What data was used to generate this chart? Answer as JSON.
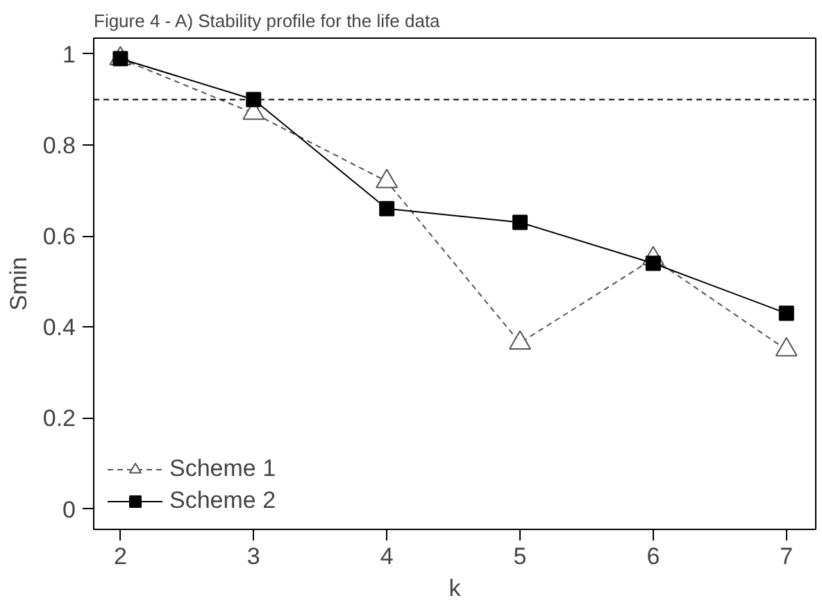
{
  "chart_data": {
    "type": "line",
    "title": "Figure 4 - A) Stability profile for the life data",
    "xlabel": "k",
    "ylabel": "Smin",
    "x": [
      2,
      3,
      4,
      5,
      6,
      7
    ],
    "series": [
      {
        "name": "Scheme 1",
        "color": "#555555",
        "values": [
          0.99,
          0.87,
          0.72,
          0.365,
          0.55,
          0.35
        ],
        "marker": "triangle",
        "line_style": "dashed"
      },
      {
        "name": "Scheme 2",
        "color": "#000000",
        "values": [
          0.99,
          0.9,
          0.66,
          0.63,
          0.54,
          0.43
        ],
        "marker": "square",
        "line_style": "solid"
      }
    ],
    "xlim": [
      1.8,
      7.22
    ],
    "ylim": [
      -0.045,
      1.035
    ],
    "xticks": [
      2,
      3,
      4,
      5,
      6,
      7
    ],
    "yticks": [
      0,
      0.2,
      0.4,
      0.6,
      0.8,
      1.0
    ],
    "ref_lines": [
      {
        "axis": "y",
        "value": 0.9,
        "label": null,
        "line_style": "dashed"
      }
    ],
    "grid": false,
    "legend": "bottom left"
  }
}
